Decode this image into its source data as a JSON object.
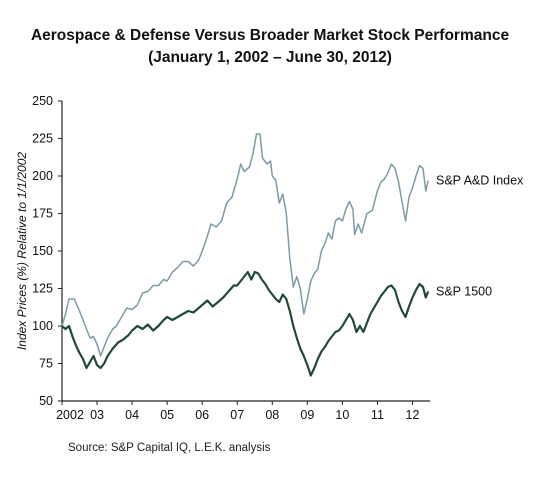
{
  "chart_data": {
    "type": "line",
    "title": "Aerospace & Defense Versus Broader Market Stock Performance",
    "subtitle": "(January 1, 2002 – June 30, 2012)",
    "ylabel": "Index Prices (%) Relative to 1/1/2002",
    "xlabel": "",
    "ylim": [
      50,
      250
    ],
    "xlim": [
      2002.0,
      2012.5
    ],
    "yticks": [
      "50",
      "75",
      "100",
      "125",
      "150",
      "175",
      "200",
      "225",
      "250"
    ],
    "xtick_labels": [
      "2002",
      "03",
      "04",
      "05",
      "06",
      "07",
      "08",
      "09",
      "10",
      "11",
      "12"
    ],
    "grid": false,
    "series": [
      {
        "name": "S&P A&D Index",
        "color": "#7d9ba6",
        "points": [
          [
            2002.0,
            100
          ],
          [
            2002.1,
            108
          ],
          [
            2002.2,
            118
          ],
          [
            2002.35,
            118
          ],
          [
            2002.5,
            110
          ],
          [
            2002.6,
            104
          ],
          [
            2002.7,
            98
          ],
          [
            2002.8,
            92
          ],
          [
            2002.9,
            93
          ],
          [
            2003.0,
            88
          ],
          [
            2003.1,
            80
          ],
          [
            2003.2,
            86
          ],
          [
            2003.3,
            92
          ],
          [
            2003.45,
            98
          ],
          [
            2003.55,
            100
          ],
          [
            2003.7,
            106
          ],
          [
            2003.85,
            112
          ],
          [
            2004.0,
            111
          ],
          [
            2004.15,
            114
          ],
          [
            2004.3,
            122
          ],
          [
            2004.45,
            123
          ],
          [
            2004.6,
            127
          ],
          [
            2004.75,
            127
          ],
          [
            2004.9,
            131
          ],
          [
            2005.0,
            130
          ],
          [
            2005.15,
            136
          ],
          [
            2005.3,
            139
          ],
          [
            2005.45,
            143
          ],
          [
            2005.6,
            143
          ],
          [
            2005.75,
            140
          ],
          [
            2005.9,
            144
          ],
          [
            2006.0,
            150
          ],
          [
            2006.15,
            160
          ],
          [
            2006.25,
            168
          ],
          [
            2006.4,
            166
          ],
          [
            2006.55,
            170
          ],
          [
            2006.7,
            182
          ],
          [
            2006.85,
            186
          ],
          [
            2007.0,
            198
          ],
          [
            2007.1,
            208
          ],
          [
            2007.2,
            203
          ],
          [
            2007.35,
            206
          ],
          [
            2007.45,
            215
          ],
          [
            2007.55,
            228
          ],
          [
            2007.65,
            228
          ],
          [
            2007.72,
            212
          ],
          [
            2007.85,
            208
          ],
          [
            2007.95,
            210
          ],
          [
            2008.0,
            200
          ],
          [
            2008.1,
            197
          ],
          [
            2008.2,
            182
          ],
          [
            2008.3,
            188
          ],
          [
            2008.4,
            175
          ],
          [
            2008.5,
            145
          ],
          [
            2008.6,
            126
          ],
          [
            2008.7,
            133
          ],
          [
            2008.8,
            125
          ],
          [
            2008.9,
            108
          ],
          [
            2009.0,
            118
          ],
          [
            2009.1,
            130
          ],
          [
            2009.2,
            135
          ],
          [
            2009.3,
            138
          ],
          [
            2009.4,
            150
          ],
          [
            2009.5,
            155
          ],
          [
            2009.6,
            162
          ],
          [
            2009.7,
            158
          ],
          [
            2009.8,
            170
          ],
          [
            2009.9,
            172
          ],
          [
            2010.0,
            170
          ],
          [
            2010.1,
            178
          ],
          [
            2010.2,
            183
          ],
          [
            2010.3,
            178
          ],
          [
            2010.35,
            161
          ],
          [
            2010.45,
            168
          ],
          [
            2010.55,
            162
          ],
          [
            2010.7,
            175
          ],
          [
            2010.85,
            177
          ],
          [
            2011.0,
            190
          ],
          [
            2011.1,
            196
          ],
          [
            2011.2,
            198
          ],
          [
            2011.3,
            202
          ],
          [
            2011.4,
            208
          ],
          [
            2011.5,
            205
          ],
          [
            2011.6,
            196
          ],
          [
            2011.7,
            183
          ],
          [
            2011.8,
            170
          ],
          [
            2011.9,
            186
          ],
          [
            2012.0,
            192
          ],
          [
            2012.1,
            200
          ],
          [
            2012.2,
            207
          ],
          [
            2012.3,
            205
          ],
          [
            2012.38,
            190
          ],
          [
            2012.45,
            197
          ]
        ]
      },
      {
        "name": "S&P 1500",
        "color": "#1f4a38",
        "points": [
          [
            2002.0,
            100
          ],
          [
            2002.1,
            98
          ],
          [
            2002.2,
            100
          ],
          [
            2002.3,
            93
          ],
          [
            2002.4,
            87
          ],
          [
            2002.5,
            82
          ],
          [
            2002.6,
            78
          ],
          [
            2002.7,
            72
          ],
          [
            2002.8,
            76
          ],
          [
            2002.9,
            80
          ],
          [
            2003.0,
            74
          ],
          [
            2003.1,
            72
          ],
          [
            2003.2,
            75
          ],
          [
            2003.3,
            80
          ],
          [
            2003.45,
            85
          ],
          [
            2003.6,
            89
          ],
          [
            2003.75,
            91
          ],
          [
            2003.9,
            94
          ],
          [
            2004.0,
            97
          ],
          [
            2004.15,
            100
          ],
          [
            2004.3,
            98
          ],
          [
            2004.45,
            101
          ],
          [
            2004.6,
            97
          ],
          [
            2004.75,
            100
          ],
          [
            2004.9,
            104
          ],
          [
            2005.0,
            106
          ],
          [
            2005.15,
            104
          ],
          [
            2005.3,
            106
          ],
          [
            2005.45,
            108
          ],
          [
            2005.6,
            110
          ],
          [
            2005.75,
            109
          ],
          [
            2005.9,
            112
          ],
          [
            2006.0,
            114
          ],
          [
            2006.15,
            117
          ],
          [
            2006.3,
            113
          ],
          [
            2006.45,
            116
          ],
          [
            2006.6,
            119
          ],
          [
            2006.75,
            123
          ],
          [
            2006.9,
            127
          ],
          [
            2007.0,
            127
          ],
          [
            2007.1,
            130
          ],
          [
            2007.2,
            133
          ],
          [
            2007.3,
            136
          ],
          [
            2007.4,
            131
          ],
          [
            2007.5,
            136
          ],
          [
            2007.6,
            135
          ],
          [
            2007.7,
            131
          ],
          [
            2007.8,
            128
          ],
          [
            2007.9,
            124
          ],
          [
            2008.0,
            121
          ],
          [
            2008.1,
            118
          ],
          [
            2008.2,
            116
          ],
          [
            2008.3,
            121
          ],
          [
            2008.4,
            118
          ],
          [
            2008.5,
            110
          ],
          [
            2008.6,
            100
          ],
          [
            2008.7,
            92
          ],
          [
            2008.8,
            85
          ],
          [
            2008.9,
            80
          ],
          [
            2009.0,
            74
          ],
          [
            2009.1,
            67
          ],
          [
            2009.2,
            72
          ],
          [
            2009.3,
            78
          ],
          [
            2009.4,
            83
          ],
          [
            2009.5,
            86
          ],
          [
            2009.6,
            90
          ],
          [
            2009.7,
            93
          ],
          [
            2009.8,
            96
          ],
          [
            2009.9,
            97
          ],
          [
            2010.0,
            100
          ],
          [
            2010.1,
            104
          ],
          [
            2010.2,
            108
          ],
          [
            2010.3,
            104
          ],
          [
            2010.4,
            96
          ],
          [
            2010.5,
            100
          ],
          [
            2010.6,
            96
          ],
          [
            2010.7,
            102
          ],
          [
            2010.8,
            108
          ],
          [
            2010.9,
            112
          ],
          [
            2011.0,
            116
          ],
          [
            2011.1,
            120
          ],
          [
            2011.2,
            123
          ],
          [
            2011.3,
            126
          ],
          [
            2011.4,
            127
          ],
          [
            2011.5,
            124
          ],
          [
            2011.6,
            116
          ],
          [
            2011.7,
            110
          ],
          [
            2011.8,
            106
          ],
          [
            2011.9,
            113
          ],
          [
            2012.0,
            119
          ],
          [
            2012.1,
            124
          ],
          [
            2012.2,
            128
          ],
          [
            2012.3,
            126
          ],
          [
            2012.38,
            119
          ],
          [
            2012.45,
            123
          ]
        ]
      }
    ]
  },
  "source_text": "Source:  S&P Capital IQ, L.E.K. analysis"
}
